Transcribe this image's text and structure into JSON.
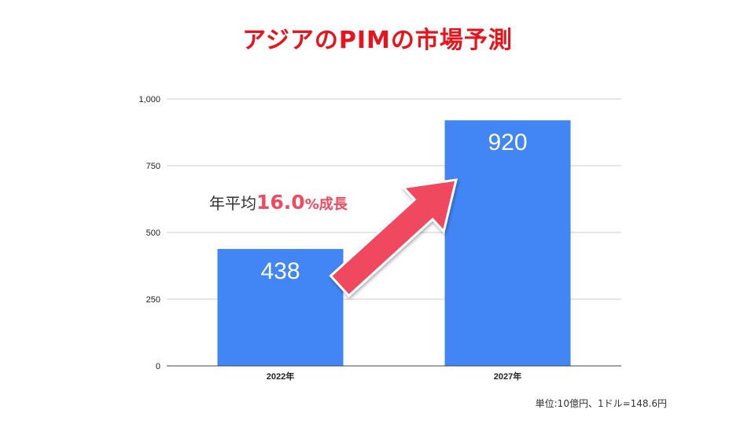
{
  "title": "アジアのPIMの市場予測",
  "footnote": "単位:10億円、1ドル=148.6円",
  "annotation": {
    "prefix": "年平均",
    "value": "16.0",
    "suffix": "%成長"
  },
  "colors": {
    "title": "#e8141b",
    "bar": "#4285f4",
    "arrow": "#f04a5e",
    "grid": "#cccccc",
    "axis": "#444444"
  },
  "chart_data": {
    "type": "bar",
    "title": "アジアのPIMの市場予測",
    "categories": [
      "2022年",
      "2027年"
    ],
    "values": [
      438,
      920
    ],
    "value_labels": [
      "438",
      "920"
    ],
    "ylim": [
      0,
      1000
    ],
    "yticks": [
      0,
      250,
      500,
      750,
      1000
    ],
    "ytick_labels": [
      "0",
      "250",
      "500",
      "750",
      "1,000"
    ],
    "grid": true,
    "xlabel": "",
    "ylabel": ""
  }
}
